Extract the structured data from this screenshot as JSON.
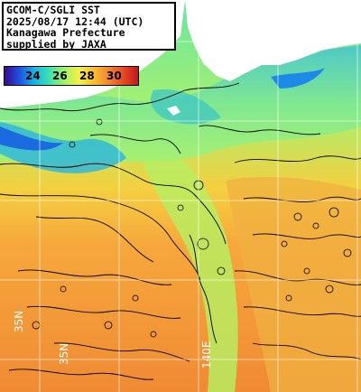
{
  "caption": {
    "line1": "GCOM-C/SGLI SST",
    "line2": "2025/08/17 12:44 (UTC)",
    "line3": "Kanagawa Prefecture",
    "line4": "supplied by JAXA"
  },
  "colorbar": {
    "ticks": [
      "24",
      "26",
      "28",
      "30"
    ],
    "stops": [
      "#3a0a8a",
      "#1e52e0",
      "#16b4e6",
      "#3de0b0",
      "#9ef26a",
      "#f3f04a",
      "#f8c030",
      "#f38630",
      "#e64a24",
      "#c01818"
    ]
  },
  "grid": {
    "lat_label_1": "35N",
    "lat_label_2": "35N",
    "lon_label": "140E"
  },
  "colors": {
    "land": "#ffffff",
    "ocean_warm": "#f39a3a",
    "ocean_mid": "#9ef26a",
    "ocean_cool": "#3dc0d0",
    "contour": "#000000"
  }
}
